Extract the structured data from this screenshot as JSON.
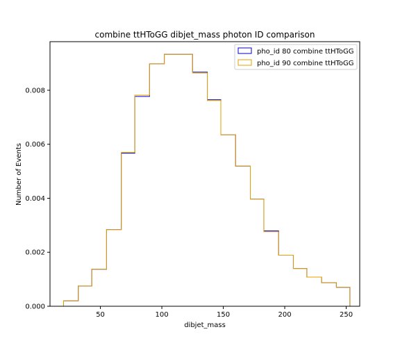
{
  "chart_data": {
    "type": "histogram",
    "title": "combine ttHToGG dibjet_mass photon ID comparison",
    "xlabel": "dibjet_mass",
    "ylabel": "Number of Events",
    "xlim": [
      9,
      261
    ],
    "ylim": [
      0,
      0.0098
    ],
    "xticks": [
      50,
      100,
      150,
      200,
      250
    ],
    "xtick_labels": [
      "50",
      "100",
      "150",
      "200",
      "250"
    ],
    "yticks": [
      0,
      0.002,
      0.004,
      0.006,
      0.008
    ],
    "ytick_labels": [
      "0.000",
      "0.002",
      "0.004",
      "0.006",
      "0.008"
    ],
    "legend_position": "top-right",
    "bin_edges": [
      20,
      32,
      43,
      55,
      67,
      78,
      90,
      102,
      113,
      125,
      137,
      148,
      160,
      172,
      183,
      195,
      207,
      218,
      230,
      242,
      253
    ],
    "series": [
      {
        "name": "pho_id 80 combine ttHToGG",
        "color": "#0000cc",
        "values": [
          0.0002,
          0.00075,
          0.00137,
          0.00284,
          0.00567,
          0.00777,
          0.00898,
          0.00933,
          0.00933,
          0.00867,
          0.00765,
          0.00635,
          0.00519,
          0.00397,
          0.00279,
          0.00189,
          0.0014,
          0.00108,
          0.00087,
          0.0007
        ]
      },
      {
        "name": "pho_id 90 combine ttHToGG",
        "color": "#e6a100",
        "values": [
          0.0002,
          0.00075,
          0.00137,
          0.00284,
          0.0057,
          0.00782,
          0.00898,
          0.00933,
          0.00933,
          0.00864,
          0.00762,
          0.00635,
          0.00519,
          0.00397,
          0.00276,
          0.00189,
          0.0014,
          0.00108,
          0.00087,
          0.0007
        ]
      }
    ]
  }
}
